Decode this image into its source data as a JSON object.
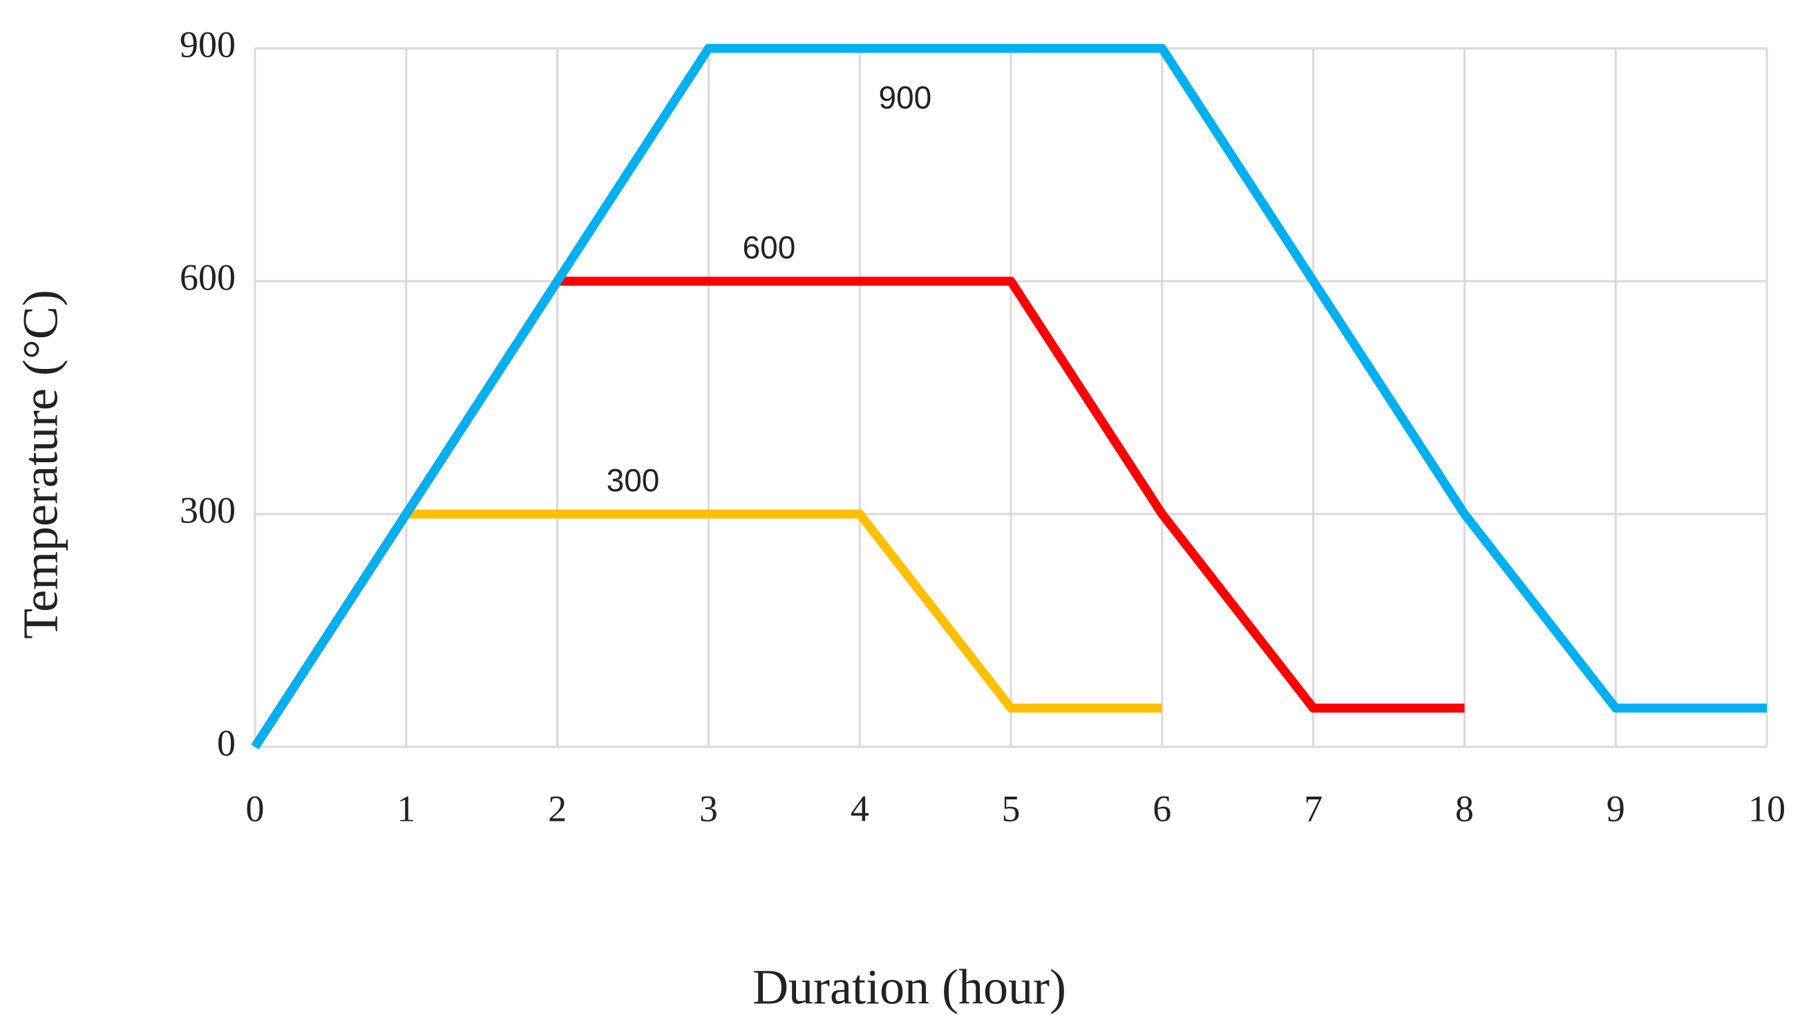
{
  "chart_data": {
    "type": "line",
    "xlabel": "Duration (hour)",
    "ylabel": "Temperature (°C)",
    "xlim": [
      0,
      10
    ],
    "xticks": [
      0,
      1,
      2,
      3,
      4,
      5,
      6,
      7,
      8,
      9,
      10
    ],
    "ylim": [
      0,
      900
    ],
    "yticks": [
      0,
      300,
      600,
      900
    ],
    "grid": true,
    "series": [
      {
        "name": "300",
        "color": "#ffc000",
        "x": [
          0,
          1,
          4,
          5,
          6
        ],
        "values": [
          0,
          300,
          300,
          50,
          50
        ]
      },
      {
        "name": "600",
        "color": "#ff0000",
        "x": [
          0,
          2,
          5,
          6,
          7,
          8
        ],
        "values": [
          0,
          600,
          600,
          300,
          50,
          50
        ]
      },
      {
        "name": "900",
        "color": "#00b0f0",
        "x": [
          0,
          3,
          6,
          7,
          8,
          9,
          10
        ],
        "values": [
          0,
          900,
          900,
          600,
          300,
          50,
          50
        ]
      }
    ]
  }
}
